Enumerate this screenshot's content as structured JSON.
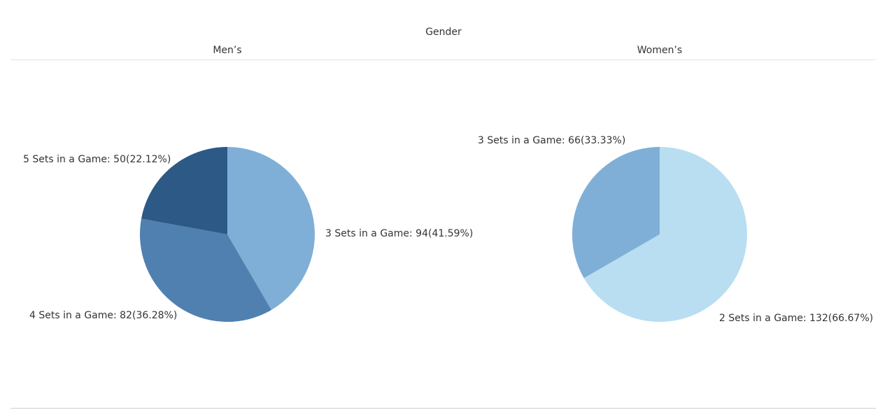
{
  "header": {
    "title": "Gender"
  },
  "columns": [
    {
      "label": "Men’s"
    },
    {
      "label": "Women’s"
    }
  ],
  "chart_data": [
    {
      "type": "pie",
      "title": "Men’s",
      "slices": [
        {
          "label": "3 Sets in a Game",
          "value": 94,
          "percent": 41.59,
          "color": "#7fafd6",
          "text": "3 Sets in a Game: 94(41.59%)"
        },
        {
          "label": "4 Sets in a Game",
          "value": 82,
          "percent": 36.28,
          "color": "#4f80b0",
          "text": "4 Sets in a Game: 82(36.28%)"
        },
        {
          "label": "5 Sets in a Game",
          "value": 50,
          "percent": 22.12,
          "color": "#2c5985",
          "text": "5 Sets in a Game: 50(22.12%)"
        }
      ]
    },
    {
      "type": "pie",
      "title": "Women’s",
      "slices": [
        {
          "label": "2 Sets in a Game",
          "value": 132,
          "percent": 66.67,
          "color": "#b9def1",
          "text": "2 Sets in a Game: 132(66.67%)"
        },
        {
          "label": "3 Sets in a Game",
          "value": 66,
          "percent": 33.33,
          "color": "#7fafd6",
          "text": "3 Sets in a Game: 66(33.33%)"
        }
      ]
    }
  ]
}
